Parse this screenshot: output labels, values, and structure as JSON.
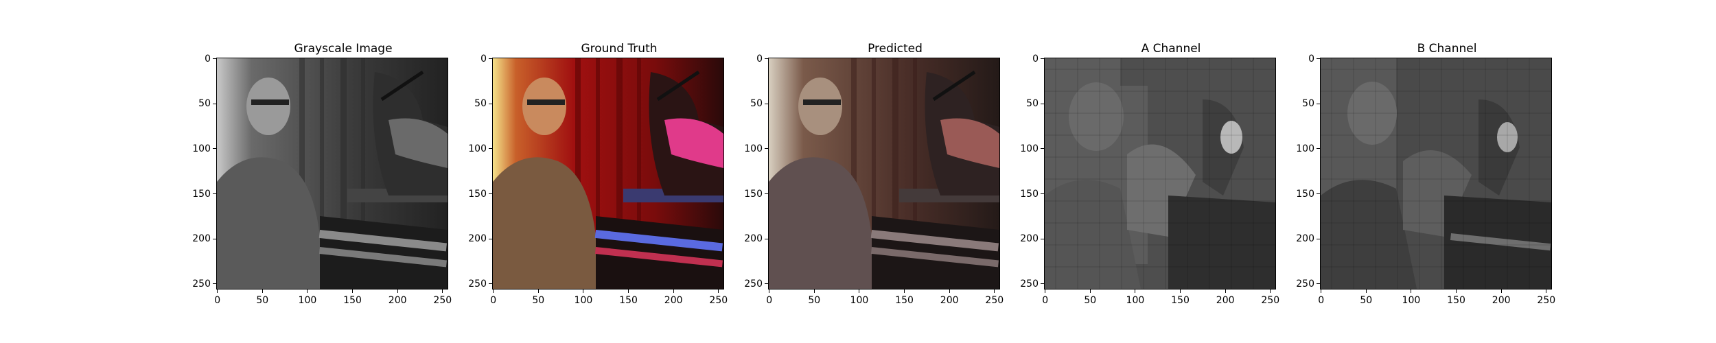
{
  "panels": [
    {
      "title": "Grayscale Image",
      "style": "gray"
    },
    {
      "title": "Ground Truth",
      "style": "gt"
    },
    {
      "title": "Predicted",
      "style": "pred"
    },
    {
      "title": "A Channel",
      "style": "chA"
    },
    {
      "title": "B Channel",
      "style": "chB"
    }
  ],
  "axes": {
    "x_ticks": [
      "0",
      "50",
      "100",
      "150",
      "200",
      "250"
    ],
    "y_ticks": [
      "0",
      "50",
      "100",
      "150",
      "200",
      "250"
    ],
    "x_values": [
      0,
      50,
      100,
      150,
      200,
      250
    ],
    "y_values": [
      0,
      50,
      100,
      150,
      200,
      250
    ],
    "data_range": [
      0,
      255
    ]
  }
}
